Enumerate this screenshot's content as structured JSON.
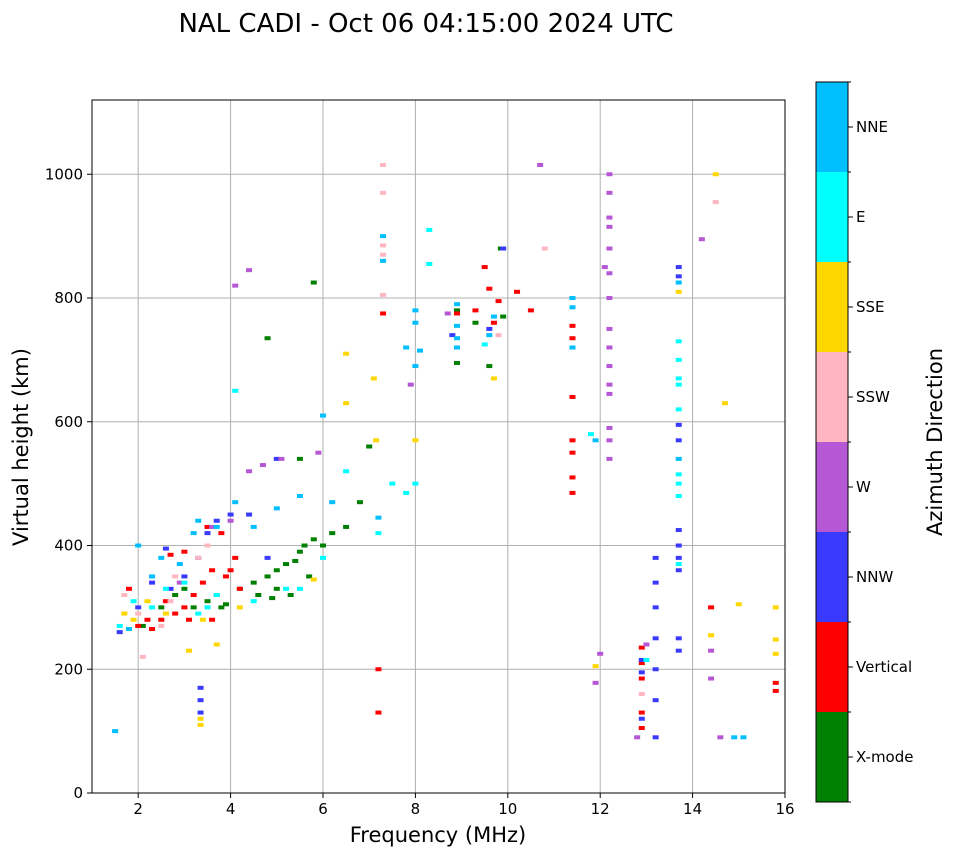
{
  "chart_data": {
    "type": "scatter",
    "title": "NAL CADI - Oct 06 04:15:00 2024 UTC",
    "xlabel": "Frequency (MHz)",
    "ylabel": "Virtual height (km)",
    "xlim": [
      1,
      16
    ],
    "ylim": [
      0,
      1120
    ],
    "xticks": [
      2,
      4,
      6,
      8,
      10,
      12,
      14,
      16
    ],
    "yticks": [
      0,
      200,
      400,
      600,
      800,
      1000
    ],
    "grid": true,
    "colorbar": {
      "label": "Azimuth Direction",
      "placement": "right",
      "categories": [
        {
          "name": "X-mode",
          "color": "#008000"
        },
        {
          "name": "Vertical",
          "color": "#ff0000"
        },
        {
          "name": "NNW",
          "color": "#3a3aff"
        },
        {
          "name": "W",
          "color": "#b657d6"
        },
        {
          "name": "SSW",
          "color": "#ffb6c1"
        },
        {
          "name": "SSE",
          "color": "#ffd700"
        },
        {
          "name": "E",
          "color": "#00ffff"
        },
        {
          "name": "NNE",
          "color": "#00bfff"
        }
      ]
    },
    "series": [
      {
        "name": "X-mode",
        "points": [
          [
            2.1,
            270
          ],
          [
            2.5,
            300
          ],
          [
            2.8,
            320
          ],
          [
            3.0,
            330
          ],
          [
            3.2,
            300
          ],
          [
            3.5,
            310
          ],
          [
            3.8,
            300
          ],
          [
            3.9,
            305
          ],
          [
            4.2,
            330
          ],
          [
            4.5,
            340
          ],
          [
            4.8,
            350
          ],
          [
            5.0,
            360
          ],
          [
            5.2,
            370
          ],
          [
            5.4,
            375
          ],
          [
            5.5,
            390
          ],
          [
            5.6,
            400
          ],
          [
            5.8,
            410
          ],
          [
            6.0,
            400
          ],
          [
            6.2,
            420
          ],
          [
            6.5,
            430
          ],
          [
            6.8,
            470
          ],
          [
            7.0,
            560
          ],
          [
            4.8,
            735
          ],
          [
            5.8,
            825
          ],
          [
            5.5,
            540
          ],
          [
            5.0,
            330
          ],
          [
            5.3,
            320
          ],
          [
            5.7,
            350
          ],
          [
            4.6,
            320
          ],
          [
            4.9,
            315
          ],
          [
            8.9,
            695
          ],
          [
            9.6,
            690
          ],
          [
            9.9,
            770
          ],
          [
            9.85,
            880
          ],
          [
            9.3,
            760
          ],
          [
            8.9,
            780
          ]
        ]
      },
      {
        "name": "Vertical",
        "points": [
          [
            1.8,
            330
          ],
          [
            2.0,
            270
          ],
          [
            2.2,
            280
          ],
          [
            2.3,
            265
          ],
          [
            2.5,
            280
          ],
          [
            2.6,
            310
          ],
          [
            2.8,
            290
          ],
          [
            3.0,
            300
          ],
          [
            3.1,
            280
          ],
          [
            3.2,
            320
          ],
          [
            3.4,
            340
          ],
          [
            3.6,
            360
          ],
          [
            3.7,
            320
          ],
          [
            3.9,
            350
          ],
          [
            4.0,
            360
          ],
          [
            4.1,
            380
          ],
          [
            4.2,
            330
          ],
          [
            3.0,
            390
          ],
          [
            3.5,
            430
          ],
          [
            3.8,
            420
          ],
          [
            7.2,
            200
          ],
          [
            7.2,
            130
          ],
          [
            7.3,
            775
          ],
          [
            8.9,
            775
          ],
          [
            9.5,
            850
          ],
          [
            9.6,
            815
          ],
          [
            9.3,
            780
          ],
          [
            9.7,
            760
          ],
          [
            9.8,
            795
          ],
          [
            10.2,
            810
          ],
          [
            10.5,
            780
          ],
          [
            11.4,
            800
          ],
          [
            11.4,
            755
          ],
          [
            11.4,
            735
          ],
          [
            11.4,
            640
          ],
          [
            11.4,
            570
          ],
          [
            11.4,
            550
          ],
          [
            11.4,
            510
          ],
          [
            11.4,
            485
          ],
          [
            12.9,
            235
          ],
          [
            12.9,
            210
          ],
          [
            12.9,
            185
          ],
          [
            12.9,
            130
          ],
          [
            12.9,
            105
          ],
          [
            14.4,
            300
          ],
          [
            15.8,
            178
          ],
          [
            15.8,
            165
          ],
          [
            3.6,
            280
          ],
          [
            2.7,
            385
          ]
        ]
      },
      {
        "name": "NNW",
        "points": [
          [
            1.6,
            260
          ],
          [
            2.0,
            300
          ],
          [
            2.3,
            340
          ],
          [
            2.7,
            330
          ],
          [
            3.0,
            350
          ],
          [
            3.3,
            380
          ],
          [
            3.35,
            170
          ],
          [
            3.35,
            150
          ],
          [
            3.35,
            130
          ],
          [
            3.5,
            420
          ],
          [
            3.7,
            440
          ],
          [
            4.0,
            450
          ],
          [
            4.4,
            450
          ],
          [
            4.8,
            380
          ],
          [
            5.0,
            540
          ],
          [
            8.8,
            740
          ],
          [
            9.6,
            750
          ],
          [
            9.9,
            880
          ],
          [
            12.9,
            215
          ],
          [
            12.9,
            195
          ],
          [
            12.9,
            120
          ],
          [
            13.2,
            90
          ],
          [
            13.2,
            150
          ],
          [
            13.2,
            200
          ],
          [
            13.2,
            250
          ],
          [
            13.2,
            300
          ],
          [
            13.2,
            340
          ],
          [
            13.2,
            380
          ],
          [
            13.7,
            850
          ],
          [
            13.7,
            835
          ],
          [
            13.7,
            595
          ],
          [
            13.7,
            570
          ],
          [
            13.7,
            425
          ],
          [
            13.7,
            400
          ],
          [
            13.7,
            380
          ],
          [
            13.7,
            360
          ],
          [
            13.7,
            250
          ],
          [
            13.7,
            230
          ],
          [
            2.6,
            395
          ]
        ]
      },
      {
        "name": "W",
        "points": [
          [
            2.9,
            340
          ],
          [
            3.6,
            430
          ],
          [
            4.0,
            440
          ],
          [
            4.4,
            520
          ],
          [
            4.7,
            530
          ],
          [
            5.1,
            540
          ],
          [
            5.9,
            550
          ],
          [
            4.1,
            820
          ],
          [
            4.4,
            845
          ],
          [
            7.9,
            660
          ],
          [
            8.7,
            775
          ],
          [
            10.7,
            1015
          ],
          [
            12.1,
            850
          ],
          [
            12.2,
            1000
          ],
          [
            12.2,
            970
          ],
          [
            12.2,
            880
          ],
          [
            12.2,
            840
          ],
          [
            12.2,
            800
          ],
          [
            12.2,
            750
          ],
          [
            12.2,
            720
          ],
          [
            12.2,
            690
          ],
          [
            12.2,
            660
          ],
          [
            12.2,
            645
          ],
          [
            12.2,
            590
          ],
          [
            12.2,
            570
          ],
          [
            12.2,
            540
          ],
          [
            12.2,
            930
          ],
          [
            12.2,
            915
          ],
          [
            12.0,
            225
          ],
          [
            11.9,
            178
          ],
          [
            12.8,
            90
          ],
          [
            13.0,
            240
          ],
          [
            14.2,
            895
          ],
          [
            14.4,
            230
          ],
          [
            14.4,
            185
          ],
          [
            14.6,
            90
          ]
        ]
      },
      {
        "name": "SSW",
        "points": [
          [
            1.7,
            320
          ],
          [
            2.0,
            290
          ],
          [
            2.1,
            220
          ],
          [
            2.5,
            270
          ],
          [
            2.7,
            310
          ],
          [
            2.8,
            350
          ],
          [
            3.3,
            380
          ],
          [
            3.5,
            400
          ],
          [
            7.3,
            1015
          ],
          [
            7.3,
            970
          ],
          [
            7.3,
            885
          ],
          [
            7.3,
            870
          ],
          [
            7.3,
            805
          ],
          [
            9.8,
            740
          ],
          [
            10.8,
            880
          ],
          [
            14.5,
            955
          ],
          [
            12.9,
            160
          ]
        ]
      },
      {
        "name": "SSE",
        "points": [
          [
            1.7,
            290
          ],
          [
            1.9,
            280
          ],
          [
            2.2,
            310
          ],
          [
            2.6,
            290
          ],
          [
            3.1,
            230
          ],
          [
            3.35,
            120
          ],
          [
            3.35,
            110
          ],
          [
            3.4,
            280
          ],
          [
            3.7,
            240
          ],
          [
            4.2,
            300
          ],
          [
            5.8,
            345
          ],
          [
            6.5,
            710
          ],
          [
            6.5,
            630
          ],
          [
            7.1,
            670
          ],
          [
            7.15,
            570
          ],
          [
            8.0,
            570
          ],
          [
            9.7,
            670
          ],
          [
            11.9,
            205
          ],
          [
            13.7,
            810
          ],
          [
            14.5,
            1000
          ],
          [
            14.7,
            630
          ],
          [
            14.4,
            255
          ],
          [
            15.0,
            305
          ],
          [
            15.8,
            300
          ],
          [
            15.8,
            248
          ],
          [
            15.8,
            225
          ]
        ]
      },
      {
        "name": "E",
        "points": [
          [
            1.6,
            270
          ],
          [
            1.9,
            310
          ],
          [
            2.3,
            300
          ],
          [
            2.6,
            330
          ],
          [
            3.0,
            340
          ],
          [
            3.3,
            290
          ],
          [
            3.5,
            300
          ],
          [
            3.7,
            320
          ],
          [
            4.1,
            650
          ],
          [
            4.5,
            310
          ],
          [
            5.2,
            330
          ],
          [
            5.5,
            330
          ],
          [
            6.0,
            380
          ],
          [
            6.5,
            520
          ],
          [
            7.2,
            420
          ],
          [
            7.5,
            500
          ],
          [
            8.0,
            500
          ],
          [
            8.3,
            910
          ],
          [
            8.3,
            855
          ],
          [
            7.8,
            485
          ],
          [
            9.5,
            725
          ],
          [
            11.8,
            580
          ],
          [
            13.7,
            730
          ],
          [
            13.7,
            700
          ],
          [
            13.7,
            670
          ],
          [
            13.7,
            660
          ],
          [
            13.7,
            620
          ],
          [
            13.7,
            515
          ],
          [
            13.7,
            500
          ],
          [
            13.7,
            480
          ],
          [
            13.7,
            370
          ],
          [
            13.0,
            215
          ]
        ]
      },
      {
        "name": "NNE",
        "points": [
          [
            1.5,
            100
          ],
          [
            1.8,
            265
          ],
          [
            2.0,
            400
          ],
          [
            2.3,
            350
          ],
          [
            2.5,
            380
          ],
          [
            2.9,
            370
          ],
          [
            3.2,
            420
          ],
          [
            3.3,
            440
          ],
          [
            3.7,
            430
          ],
          [
            4.1,
            470
          ],
          [
            4.5,
            430
          ],
          [
            5.0,
            460
          ],
          [
            5.5,
            480
          ],
          [
            6.0,
            610
          ],
          [
            6.2,
            470
          ],
          [
            7.2,
            445
          ],
          [
            7.3,
            900
          ],
          [
            7.3,
            860
          ],
          [
            7.8,
            720
          ],
          [
            8.0,
            780
          ],
          [
            8.0,
            760
          ],
          [
            8.0,
            690
          ],
          [
            8.1,
            715
          ],
          [
            8.9,
            790
          ],
          [
            8.9,
            755
          ],
          [
            8.9,
            735
          ],
          [
            8.9,
            720
          ],
          [
            9.6,
            740
          ],
          [
            9.7,
            770
          ],
          [
            11.4,
            800
          ],
          [
            11.4,
            785
          ],
          [
            11.4,
            720
          ],
          [
            11.9,
            570
          ],
          [
            13.7,
            540
          ],
          [
            13.7,
            825
          ],
          [
            14.9,
            90
          ],
          [
            15.1,
            90
          ]
        ]
      }
    ]
  }
}
